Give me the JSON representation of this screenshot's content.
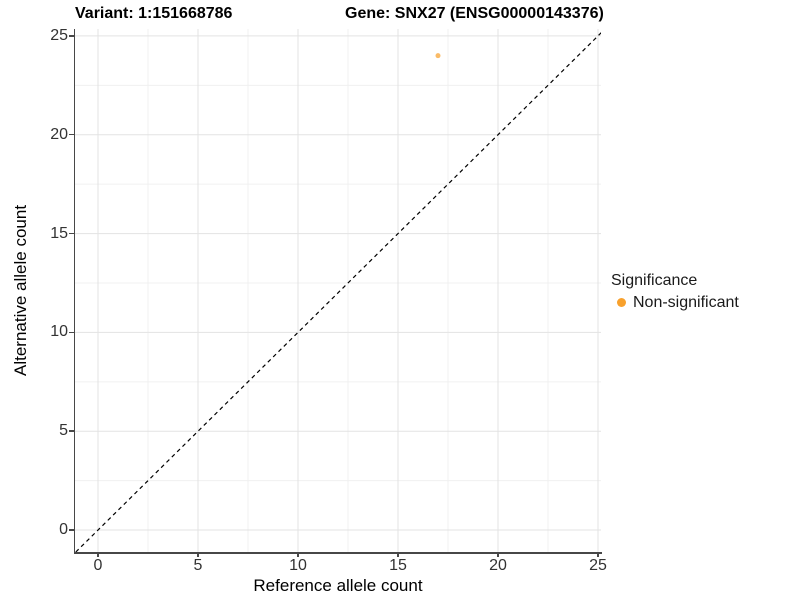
{
  "header": {
    "title_left": "Variant: 1:151668786",
    "title_right": "Gene: SNX27 (ENSG00000143376)"
  },
  "legend": {
    "title": "Significance",
    "items": [
      {
        "label": "Non-significant",
        "color": "#F8A12D"
      }
    ]
  },
  "chart_data": {
    "type": "scatter",
    "title": "Variant: 1:151668786 | Gene: SNX27 (ENSG00000143376)",
    "xlabel": "Reference allele count",
    "ylabel": "Alternative allele count",
    "x_ticks": [
      0,
      5,
      10,
      15,
      20,
      25
    ],
    "y_ticks": [
      0,
      5,
      10,
      15,
      20,
      25
    ],
    "minor_gridlines": [
      2.5,
      7.5,
      12.5,
      17.5,
      22.5
    ],
    "xlim": [
      -1.15,
      25.15
    ],
    "ylim": [
      -1.11,
      25.35
    ],
    "grid": true,
    "legend_position": "right",
    "series": [
      {
        "name": "Non-significant",
        "color": "#F8A12D",
        "point_opacity": 0.72,
        "point_radius": 2.5,
        "points": [
          {
            "x": 17,
            "y": 24
          }
        ]
      }
    ],
    "reference_line": {
      "kind": "identity y=x",
      "style": "dashed",
      "color": "#000000"
    }
  },
  "colors": {
    "background": "#ffffff",
    "grid_major": "#e3e3e3",
    "grid_minor": "#f0f0f0",
    "axis_line": "#474747",
    "tick_mark": "#474747",
    "tick_label": "#333333",
    "axis_title": "#000000",
    "title": "#000000",
    "point": "#F9A43B",
    "legend_dot": "#F8A12D"
  }
}
